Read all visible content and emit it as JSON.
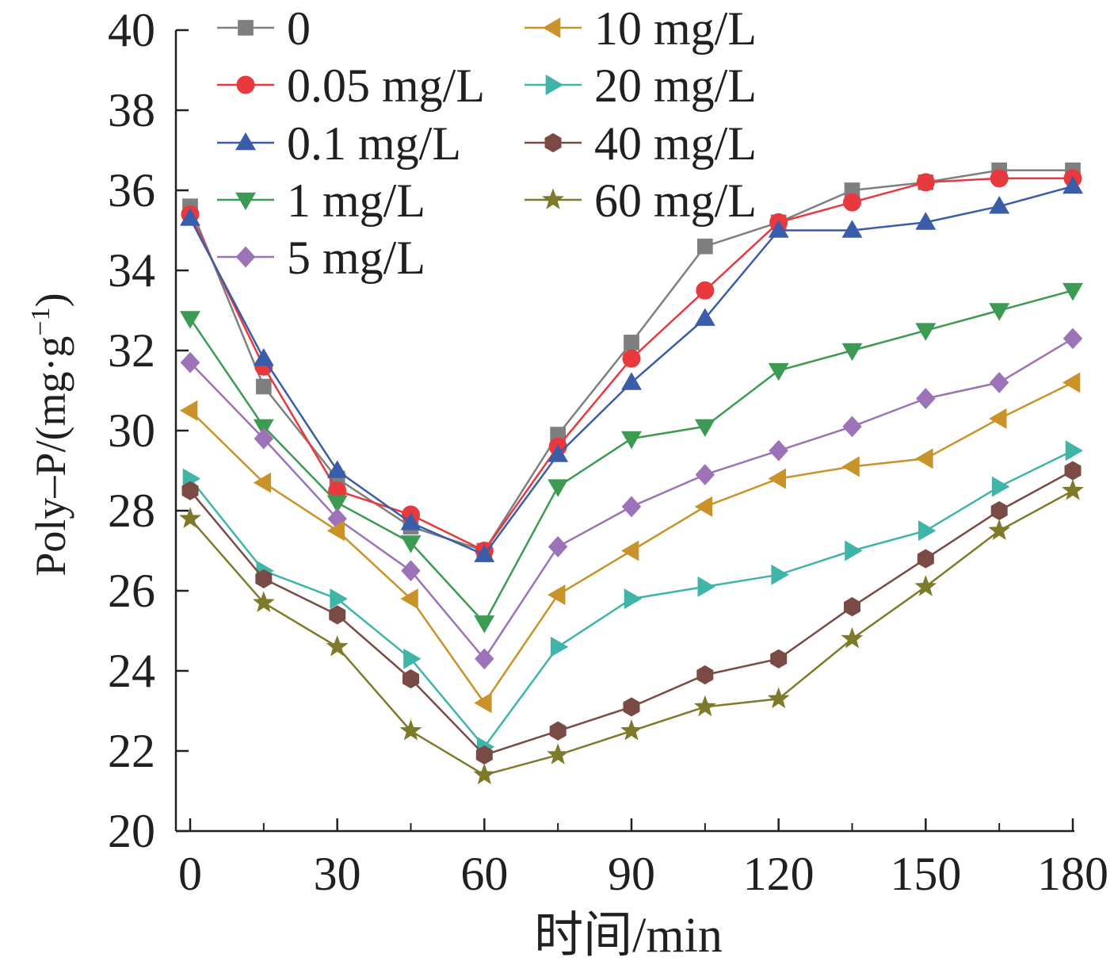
{
  "chart_data": {
    "type": "line",
    "title": "",
    "xlabel": "时间/min",
    "ylabel": "Poly–P/(mg·g",
    "ylabel_sup": "−1",
    "ylabel_close": ")",
    "xlim": [
      0,
      180
    ],
    "ylim": [
      20,
      40
    ],
    "xticks": [
      0,
      30,
      60,
      90,
      120,
      150,
      180
    ],
    "yticks": [
      20,
      22,
      24,
      26,
      28,
      30,
      32,
      34,
      36,
      38,
      40
    ],
    "grid": false,
    "legend_position": "top-left, two columns",
    "x": [
      0,
      15,
      30,
      45,
      60,
      75,
      90,
      105,
      120,
      135,
      150,
      165,
      180
    ],
    "series": [
      {
        "name": "0",
        "color": "#7f7f7f",
        "marker": "square",
        "values": [
          35.6,
          31.1,
          28.8,
          27.6,
          27.0,
          29.9,
          32.2,
          34.6,
          35.2,
          36.0,
          36.2,
          36.5,
          36.5
        ]
      },
      {
        "name": "0.05 mg/L",
        "color": "#e8393f",
        "marker": "circle",
        "values": [
          35.4,
          31.6,
          28.5,
          27.9,
          27.0,
          29.6,
          31.8,
          33.5,
          35.2,
          35.7,
          36.2,
          36.3,
          36.3
        ]
      },
      {
        "name": "0.1 mg/L",
        "color": "#3b5ca8",
        "marker": "triangle-up",
        "values": [
          35.3,
          31.8,
          29.0,
          27.7,
          26.9,
          29.4,
          31.2,
          32.8,
          35.0,
          35.0,
          35.2,
          35.6,
          36.1
        ]
      },
      {
        "name": "1 mg/L",
        "color": "#3d9a52",
        "marker": "triangle-down",
        "values": [
          32.8,
          30.1,
          28.2,
          27.2,
          25.2,
          28.6,
          29.8,
          30.1,
          31.5,
          32.0,
          32.5,
          33.0,
          33.5
        ]
      },
      {
        "name": "5 mg/L",
        "color": "#9c72b8",
        "marker": "diamond",
        "values": [
          31.7,
          29.8,
          27.8,
          26.5,
          24.3,
          27.1,
          28.1,
          28.9,
          29.5,
          30.1,
          30.8,
          31.2,
          32.3
        ]
      },
      {
        "name": "10 mg/L",
        "color": "#c9932a",
        "marker": "triangle-left",
        "values": [
          30.5,
          28.7,
          27.5,
          25.8,
          23.2,
          25.9,
          27.0,
          28.1,
          28.8,
          29.1,
          29.3,
          30.3,
          31.2
        ]
      },
      {
        "name": "20 mg/L",
        "color": "#3fb5a8",
        "marker": "triangle-right",
        "values": [
          28.8,
          26.5,
          25.8,
          24.3,
          22.1,
          24.6,
          25.8,
          26.1,
          26.4,
          27.0,
          27.5,
          28.6,
          29.5
        ]
      },
      {
        "name": "40 mg/L",
        "color": "#7a4b45",
        "marker": "hexagon",
        "values": [
          28.5,
          26.3,
          25.4,
          23.8,
          21.9,
          22.5,
          23.1,
          23.9,
          24.3,
          25.6,
          26.8,
          28.0,
          29.0
        ]
      },
      {
        "name": "60 mg/L",
        "color": "#7e7a2a",
        "marker": "star",
        "values": [
          27.8,
          25.7,
          24.6,
          22.5,
          21.4,
          21.9,
          22.5,
          23.1,
          23.3,
          24.8,
          26.1,
          27.5,
          28.5
        ]
      }
    ]
  }
}
